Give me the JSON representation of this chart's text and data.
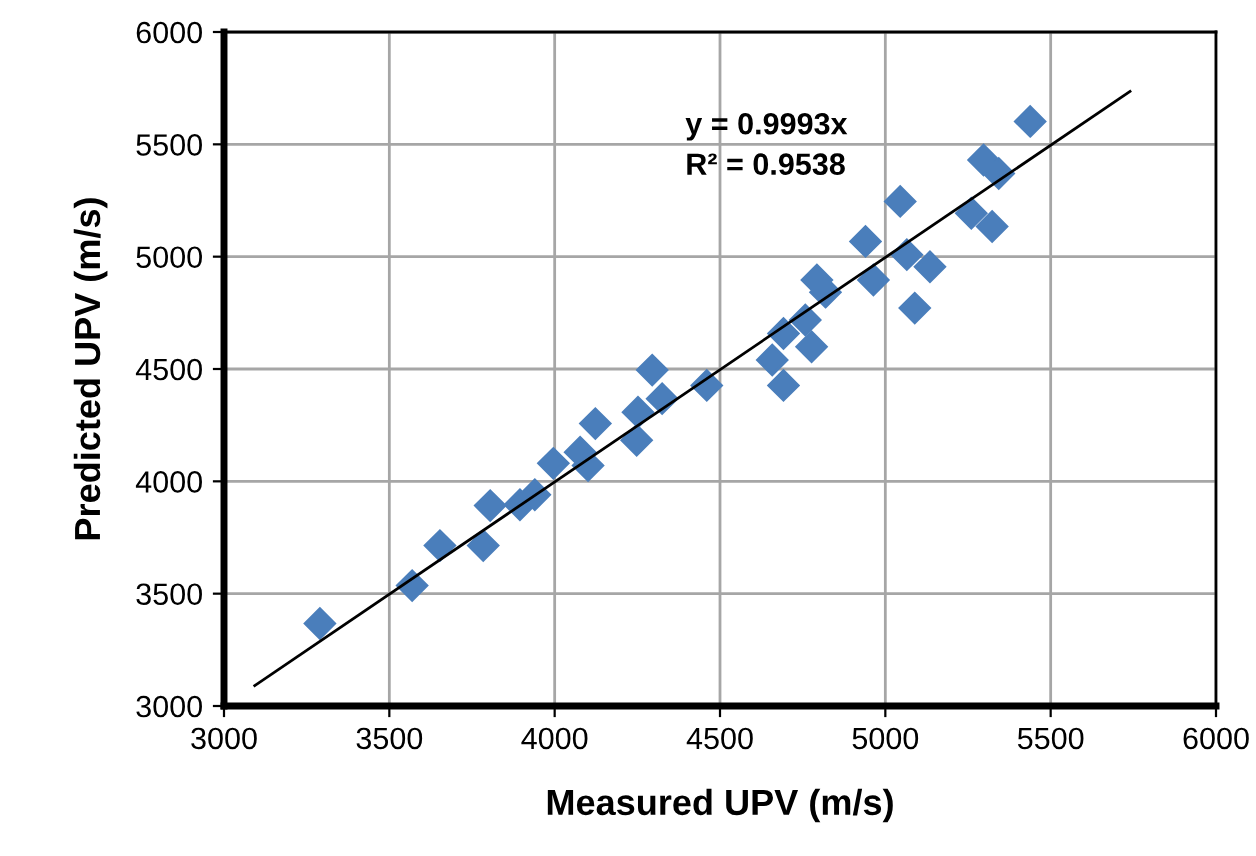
{
  "chart_data": {
    "type": "scatter",
    "xlabel": "Measured UPV (m/s)",
    "ylabel": "Predicted UPV (m/s)",
    "annotations": [
      "y = 0.9993x",
      "R² = 0.9538"
    ],
    "xlim": [
      3000,
      6000
    ],
    "xticks": [
      3000,
      3500,
      4000,
      4500,
      5000,
      5500,
      6000
    ],
    "ylim": [
      3000,
      6000
    ],
    "yticks": [
      3000,
      3500,
      4000,
      4500,
      5000,
      5500,
      6000
    ],
    "grid": true,
    "marker": "diamond",
    "series": [
      {
        "color": "#4a7ebb",
        "x": [
          3290,
          3569,
          3653,
          3784,
          3805,
          3895,
          3940,
          3996,
          4077,
          4101,
          4123,
          4248,
          4252,
          4295,
          4325,
          4460,
          4658,
          4692,
          4692,
          4758,
          4777,
          4793,
          4819,
          4940,
          4964,
          5045,
          5065,
          5089,
          5135,
          5260,
          5297,
          5343,
          5323,
          5438
        ],
        "values": [
          3367,
          3536,
          3714,
          3714,
          3892,
          3896,
          3940,
          4080,
          4130,
          4070,
          4257,
          4183,
          4308,
          4495,
          4368,
          4427,
          4540,
          4427,
          4658,
          4718,
          4599,
          4896,
          4842,
          5068,
          4896,
          5246,
          5009,
          4771,
          4955,
          5193,
          5430,
          5370,
          5134,
          5602
        ]
      },
      {
        "type": "line",
        "color": "#000000",
        "marker": "none",
        "x": [
          3093,
          5740
        ],
        "values": [
          3091,
          5736
        ]
      }
    ]
  }
}
